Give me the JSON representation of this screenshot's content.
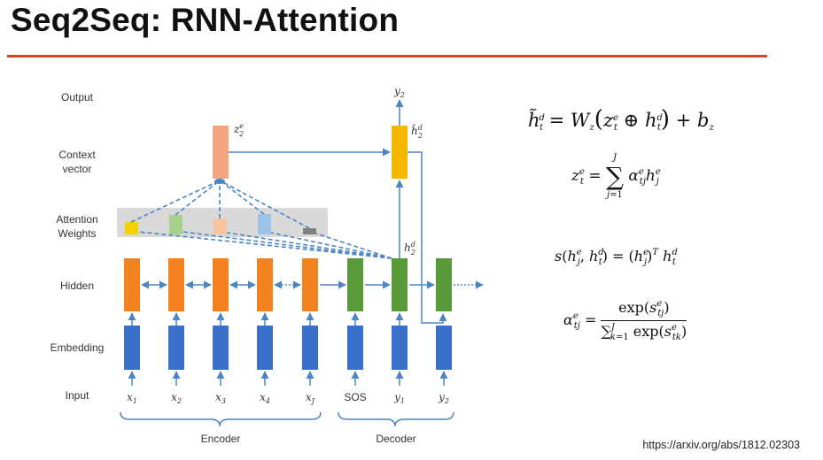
{
  "slide": {
    "title": "Seq2Seq: RNN-Attention",
    "source": "https://arxiv.org/abs/1812.02303"
  },
  "diagram": {
    "row_labels": {
      "output": "Output",
      "context_line1": "Context",
      "context_line2": "vector",
      "attention_line1": "Attention",
      "attention_line2": "Weights",
      "hidden": "Hidden",
      "embedding": "Embedding",
      "input": "Input"
    },
    "inputs": [
      "x1",
      "x2",
      "x3",
      "x4",
      "xJ",
      "SOS",
      "y1",
      "y2"
    ],
    "output_label": "y2",
    "context_label": "z2e",
    "combined_label": "h~2d",
    "decoder_hidden_label": "h2d",
    "group_labels": {
      "encoder": "Encoder",
      "decoder": "Decoder"
    },
    "colors": {
      "encoder_hidden": "#f58220",
      "decoder_hidden": "#5a9a3a",
      "embedding": "#3a6fc9",
      "context": "#f4a582",
      "combined": "#f5b800",
      "arrow": "#4a86c5",
      "attention_band": "#d9d9d9",
      "attention_cells": [
        "#f5d000",
        "#a8d08d",
        "#f8c4a0",
        "#9dc3e6",
        "#808080"
      ]
    }
  },
  "equations": [
    "h~td = Wz(zte ⊕ htd) + bz",
    "zte = Σj=1..J αtje hje",
    "s(hje, htd) = (hje)T htd",
    "αtje = exp(stje) / Σk=1..J exp(stke)"
  ]
}
